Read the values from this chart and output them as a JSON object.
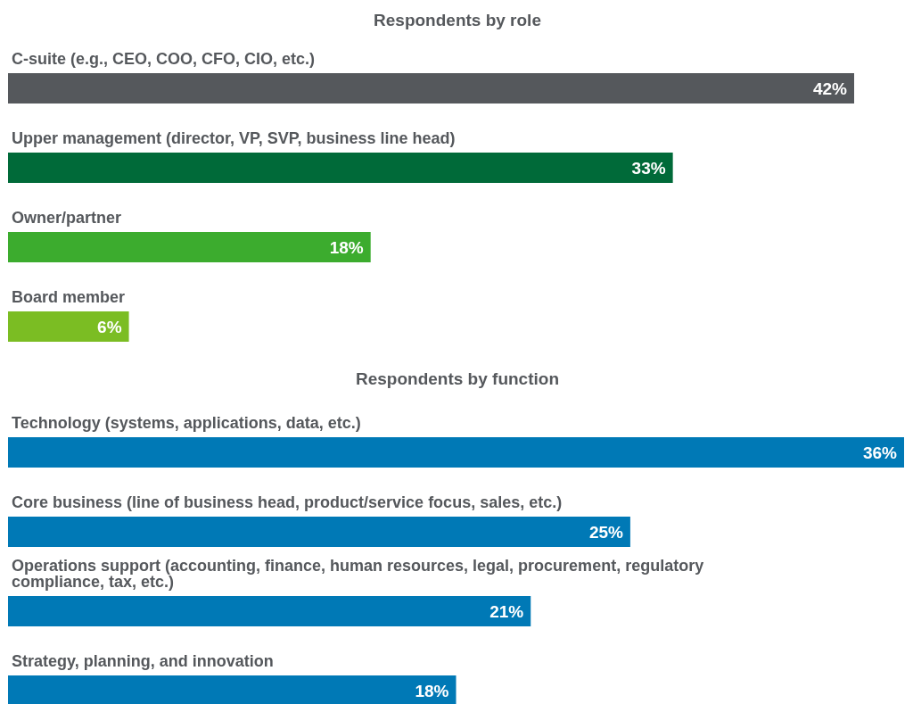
{
  "chart_data": [
    {
      "type": "bar",
      "orientation": "horizontal",
      "title": "Respondents by role",
      "categories": [
        "C-suite (e.g., CEO, COO, CFO, CIO, etc.)",
        "Upper management (director, VP, SVP, business line head)",
        "Owner/partner",
        "Board member"
      ],
      "values": [
        42,
        33,
        18,
        6
      ],
      "value_labels": [
        "42%",
        "33%",
        "18%",
        "6%"
      ],
      "colors": [
        "#55585c",
        "#006a39",
        "#3cac2e",
        "#7bbd23"
      ]
    },
    {
      "type": "bar",
      "orientation": "horizontal",
      "title": "Respondents by function",
      "categories": [
        "Technology (systems, applications, data, etc.)",
        "Core business (line of business head, product/service focus, sales, etc.)",
        "Operations support (accounting, finance, human resources, legal, procurement, regulatory compliance, tax, etc.)",
        "Strategy, planning, and innovation"
      ],
      "values": [
        36,
        25,
        21,
        18
      ],
      "value_labels": [
        "36%",
        "25%",
        "21%",
        "18%"
      ],
      "colors": [
        "#0079b6",
        "#0079b6",
        "#0079b6",
        "#0079b6"
      ]
    }
  ]
}
